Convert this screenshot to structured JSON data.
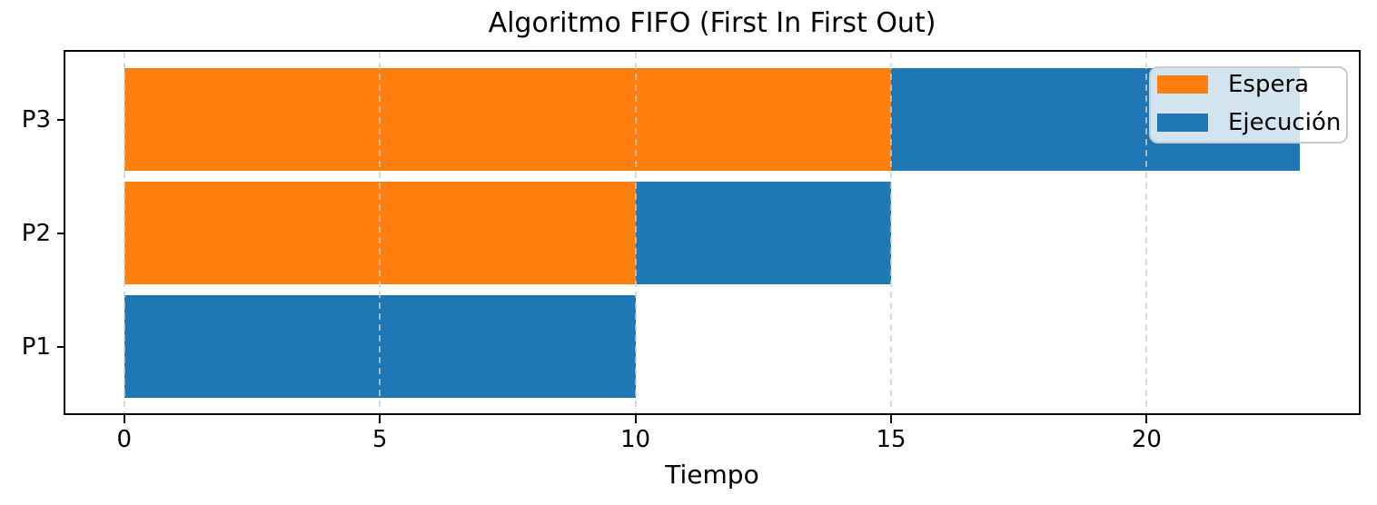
{
  "chart_data": {
    "type": "bar",
    "orientation": "horizontal",
    "title": "Algoritmo FIFO (First In First Out)",
    "xlabel": "Tiempo",
    "ylabel": "",
    "xticks": [
      0,
      5,
      10,
      15,
      20
    ],
    "xlim": [
      -1.15,
      24.15
    ],
    "grid": "vertical-dashed-above-bars",
    "grid_color": "#cdcdcd",
    "axis_color": "#000000",
    "background_color": "#ffffff",
    "legend_position": "upper-right",
    "legend_entries": [
      "Espera",
      "Ejecución"
    ],
    "series": [
      {
        "name": "Espera",
        "color": "#ff7f0e"
      },
      {
        "name": "Ejecución",
        "color": "#1f77b4"
      }
    ],
    "categories_top_to_bottom": [
      "P3",
      "P2",
      "P1"
    ],
    "rows": [
      {
        "label": "P3",
        "segments": [
          {
            "series": "Espera",
            "start": 0,
            "end": 15
          },
          {
            "series": "Ejecución",
            "start": 15,
            "end": 23
          }
        ]
      },
      {
        "label": "P2",
        "segments": [
          {
            "series": "Espera",
            "start": 0,
            "end": 10
          },
          {
            "series": "Ejecución",
            "start": 10,
            "end": 15
          }
        ]
      },
      {
        "label": "P1",
        "segments": [
          {
            "series": "Ejecución",
            "start": 0,
            "end": 10
          }
        ]
      }
    ]
  }
}
